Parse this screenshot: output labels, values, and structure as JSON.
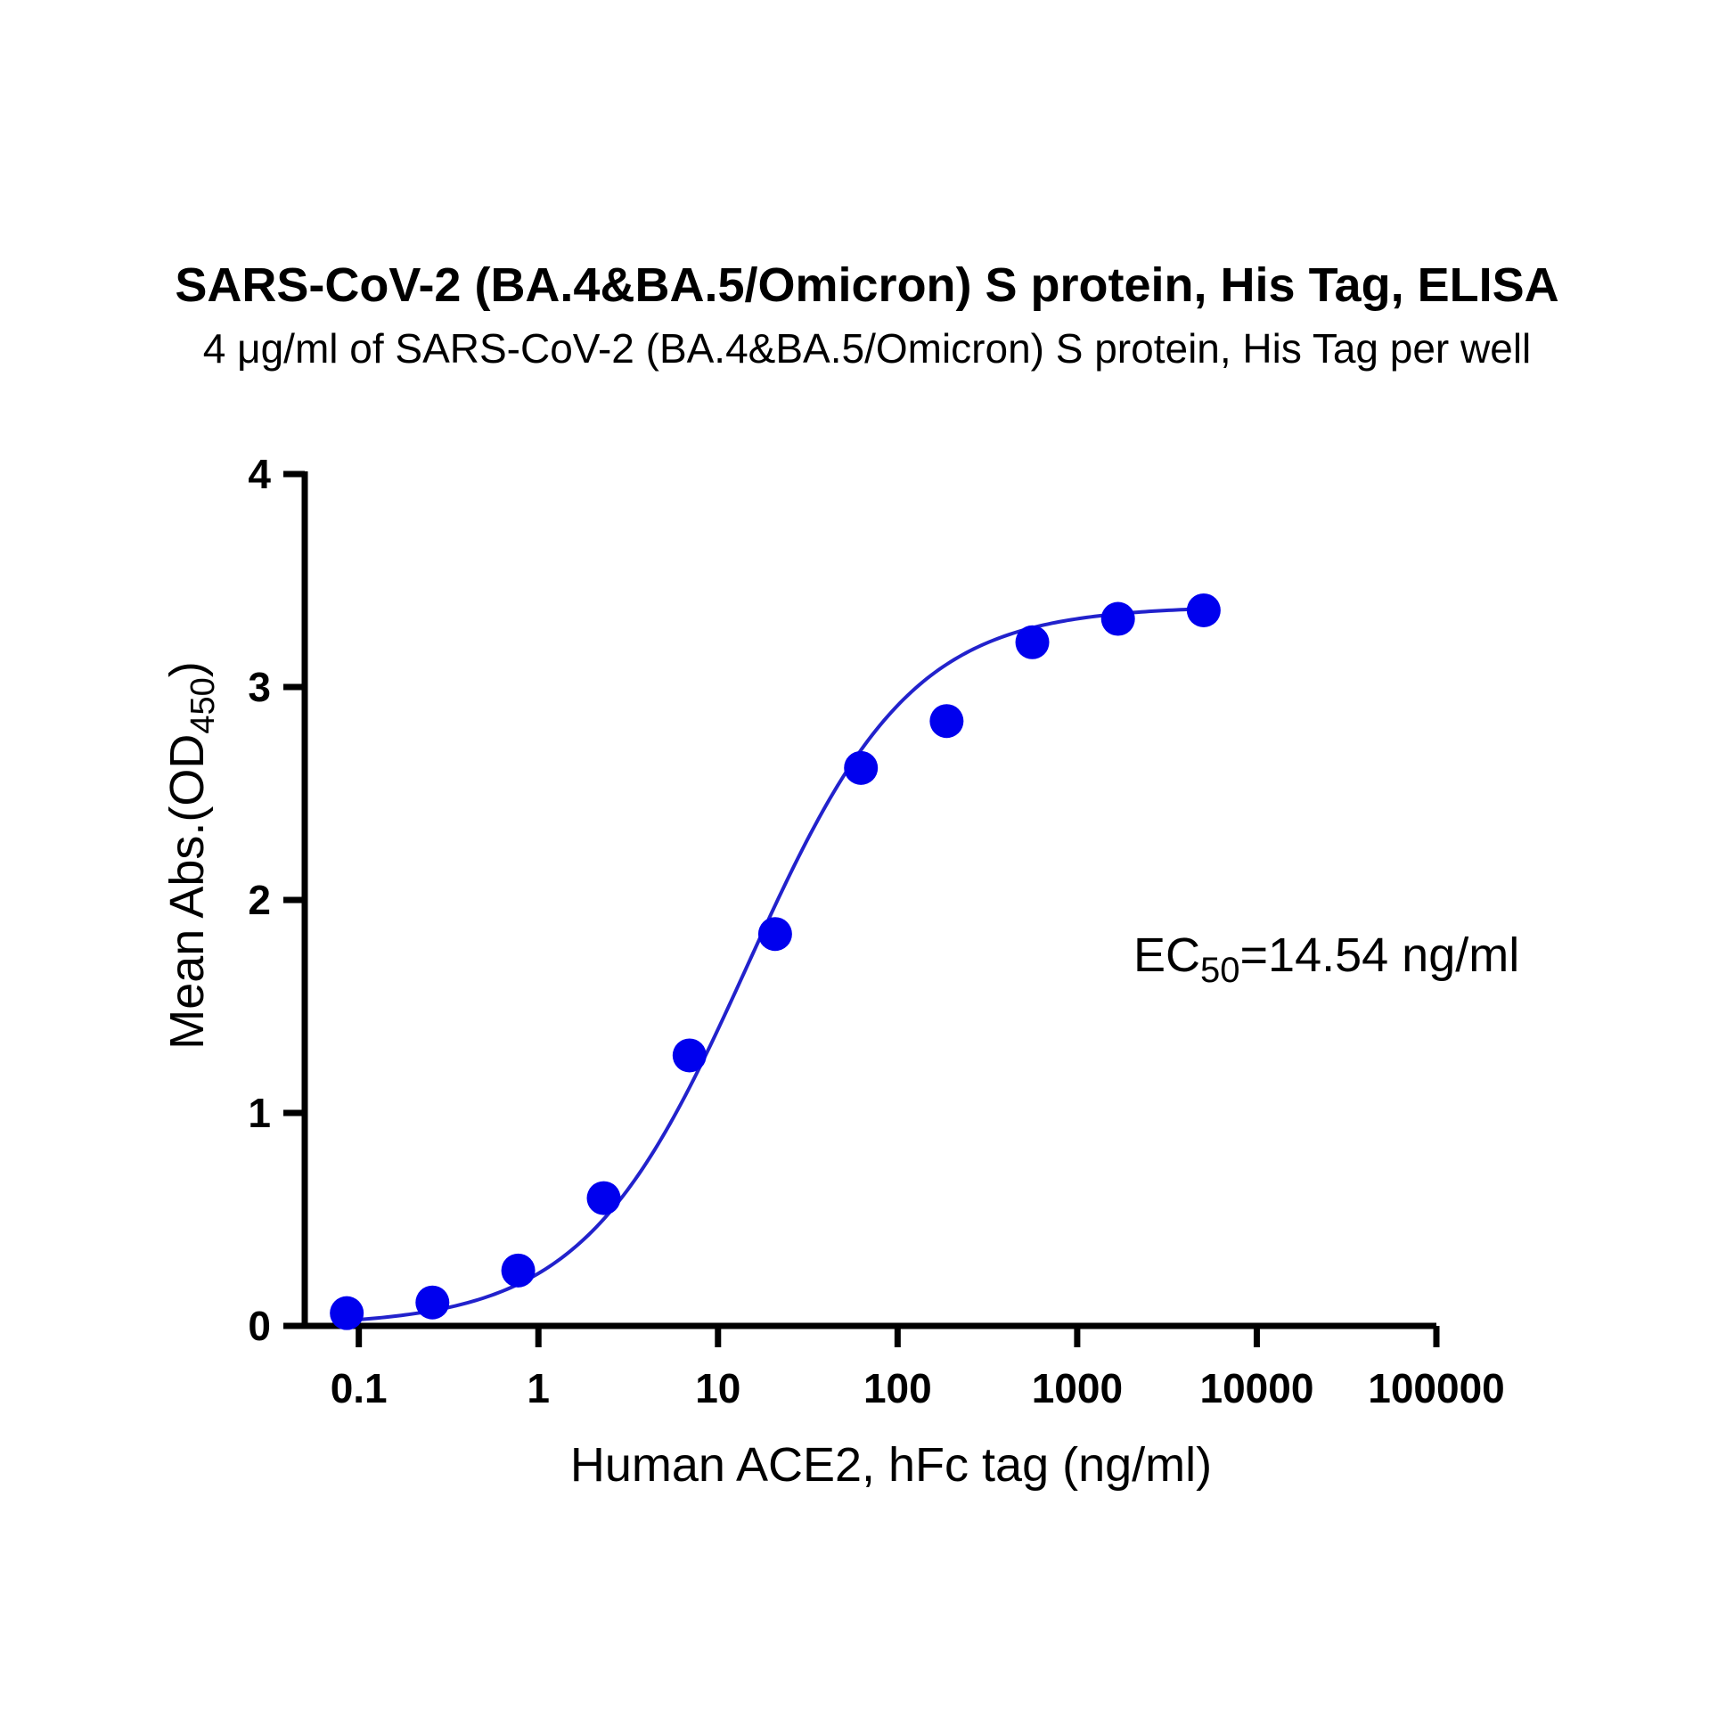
{
  "chart_data": {
    "type": "scatter",
    "title": "SARS-CoV-2 (BA.4&BA.5/Omicron) S protein, His Tag, ELISA",
    "subtitle": "4 μg/ml of SARS-CoV-2 (BA.4&BA.5/Omicron) S protein, His Tag per well",
    "xlabel": "Human ACE2, hFc tag (ng/ml)",
    "ylabel": {
      "main": "Mean Abs.(OD",
      "sub": "450",
      "close": ")"
    },
    "xscale": "log",
    "xlim": [
      0.05,
      100000
    ],
    "ylim": [
      0,
      4
    ],
    "x_ticks": [
      {
        "value": 0.1,
        "label": "0.1"
      },
      {
        "value": 1,
        "label": "1"
      },
      {
        "value": 10,
        "label": "10"
      },
      {
        "value": 100,
        "label": "100"
      },
      {
        "value": 1000,
        "label": "1000"
      },
      {
        "value": 10000,
        "label": "10000"
      },
      {
        "value": 100000,
        "label": "100000"
      }
    ],
    "y_ticks": [
      {
        "value": 0,
        "label": "0"
      },
      {
        "value": 1,
        "label": "1"
      },
      {
        "value": 2,
        "label": "2"
      },
      {
        "value": 3,
        "label": "3"
      },
      {
        "value": 4,
        "label": "4"
      }
    ],
    "grid": false,
    "series": [
      {
        "color": "#0000ee",
        "x": [
          0.0857,
          0.257,
          0.772,
          2.31,
          6.94,
          20.8,
          62.5,
          187.5,
          562.5,
          1687.5,
          5062.5
        ],
        "y": [
          0.06,
          0.11,
          0.26,
          0.6,
          1.27,
          1.84,
          2.62,
          2.84,
          3.21,
          3.32,
          3.36
        ]
      }
    ],
    "fit": {
      "model": "4PL",
      "bottom": 0.0,
      "top": 3.38,
      "ec50": 14.54,
      "hill": 0.95,
      "color": "#2222cc"
    },
    "annotation": {
      "main": "EC",
      "sub": "50",
      "rest": "=14.54 ng/ml"
    }
  }
}
